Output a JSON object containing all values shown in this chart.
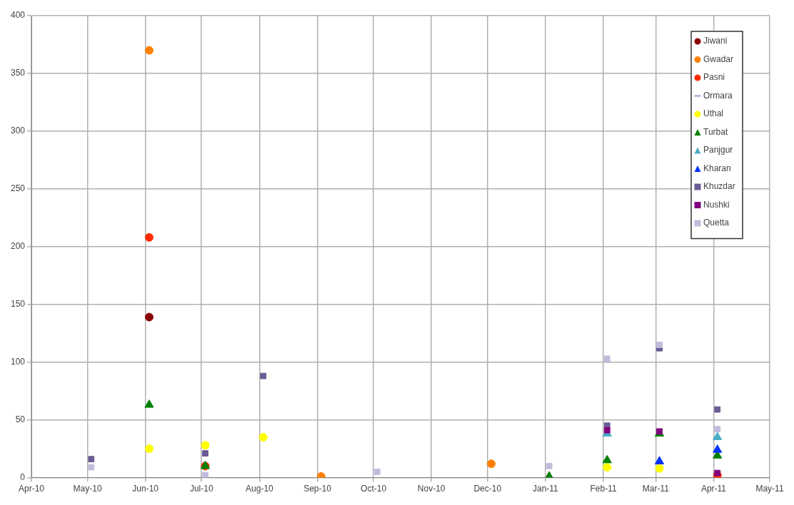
{
  "chart_data": {
    "type": "scatter",
    "xlim": [
      "2010-04-01",
      "2011-05-01"
    ],
    "xticks": [
      {
        "value": "2010-04-01",
        "label": "Apr-10"
      },
      {
        "value": "2010-05-01",
        "label": "May-10"
      },
      {
        "value": "2010-06-01",
        "label": "Jun-10"
      },
      {
        "value": "2010-07-01",
        "label": "Jul-10"
      },
      {
        "value": "2010-08-01",
        "label": "Aug-10"
      },
      {
        "value": "2010-09-01",
        "label": "Sep-10"
      },
      {
        "value": "2010-10-01",
        "label": "Oct-10"
      },
      {
        "value": "2010-11-01",
        "label": "Nov-10"
      },
      {
        "value": "2010-12-01",
        "label": "Dec-10"
      },
      {
        "value": "2011-01-01",
        "label": "Jan-11"
      },
      {
        "value": "2011-02-01",
        "label": "Feb-11"
      },
      {
        "value": "2011-03-01",
        "label": "Mar-11"
      },
      {
        "value": "2011-04-01",
        "label": "Apr-11"
      },
      {
        "value": "2011-05-01",
        "label": "May-11"
      }
    ],
    "ylim": [
      0,
      400
    ],
    "yticks": [
      0,
      50,
      100,
      150,
      200,
      250,
      300,
      350,
      400
    ],
    "grid": true,
    "legend": "top right",
    "series": [
      {
        "name": "Jiwani",
        "color": "#8b0000",
        "marker": "circle",
        "x": [
          "2010-06-03"
        ],
        "values": [
          139
        ]
      },
      {
        "name": "Gwadar",
        "color": "#ff8000",
        "marker": "circle",
        "x": [
          "2010-06-03",
          "2010-09-03",
          "2010-12-03"
        ],
        "values": [
          370,
          1,
          12
        ]
      },
      {
        "name": "Pasni",
        "color": "#ff2a00",
        "marker": "circle",
        "x": [
          "2010-06-03",
          "2010-07-03",
          "2011-04-03"
        ],
        "values": [
          208,
          10,
          2
        ]
      },
      {
        "name": "Ormara",
        "color": "#9999cc",
        "marker": "none"
      },
      {
        "name": "Uthal",
        "color": "#ffff00",
        "marker": "circle",
        "x": [
          "2010-06-03",
          "2010-07-03",
          "2010-08-03",
          "2011-02-03",
          "2011-03-03"
        ],
        "values": [
          25,
          28,
          35,
          9,
          8
        ]
      },
      {
        "name": "Turbat",
        "color": "#008000",
        "marker": "triangle",
        "x": [
          "2010-06-03",
          "2010-07-03",
          "2011-01-03",
          "2011-02-03",
          "2011-03-03",
          "2011-04-03"
        ],
        "values": [
          63,
          10,
          1,
          15,
          38,
          19
        ]
      },
      {
        "name": "Panjgur",
        "color": "#4bacc6",
        "marker": "triangle",
        "x": [
          "2011-02-03",
          "2011-04-03"
        ],
        "values": [
          38,
          35
        ]
      },
      {
        "name": "Kharan",
        "color": "#0033ff",
        "marker": "triangle",
        "x": [
          "2011-03-03",
          "2011-04-03"
        ],
        "values": [
          14,
          24
        ]
      },
      {
        "name": "Khuzdar",
        "color": "#6b5b95",
        "marker": "square",
        "x": [
          "2010-05-03",
          "2010-07-03",
          "2010-08-03",
          "2011-02-03",
          "2011-03-03",
          "2011-04-03"
        ],
        "values": [
          16,
          21,
          88,
          45,
          112,
          59
        ]
      },
      {
        "name": "Nushki",
        "color": "#800080",
        "marker": "square",
        "x": [
          "2011-02-03",
          "2011-03-03",
          "2011-04-03"
        ],
        "values": [
          41,
          40,
          4
        ]
      },
      {
        "name": "Quetta",
        "color": "#c0bcdc",
        "marker": "square",
        "x": [
          "2010-05-03",
          "2010-07-03",
          "2010-10-03",
          "2011-01-03",
          "2011-02-03",
          "2011-03-03",
          "2011-04-03"
        ],
        "values": [
          9,
          2,
          5,
          10,
          103,
          115,
          42
        ]
      }
    ]
  }
}
